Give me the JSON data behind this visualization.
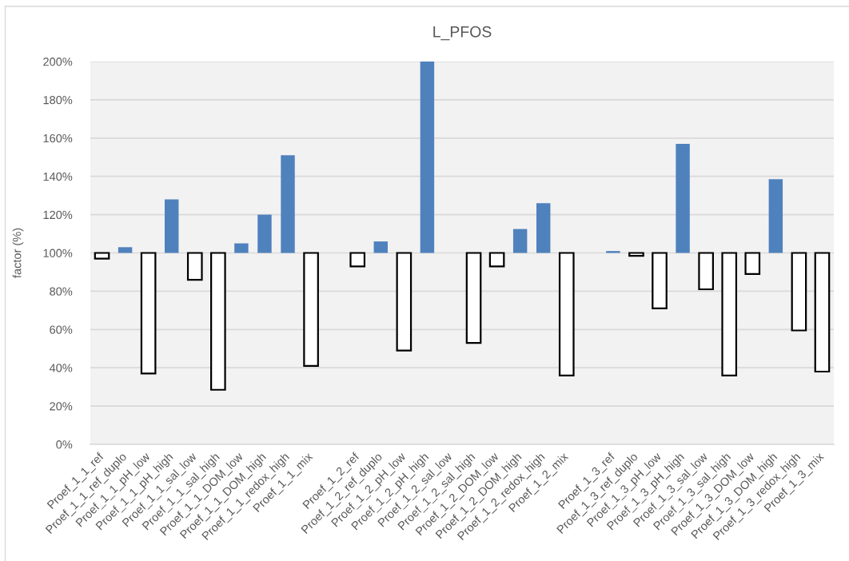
{
  "chart_data": {
    "type": "bar",
    "title": "L_PFOS",
    "ylabel": "factor (%)",
    "categories": [
      "Proef_1_1_ref",
      "Proef_1_1_ref_duplo",
      "Proef_1_1_pH_low",
      "Proef_1_1_pH_high",
      "Proef_1_1_sal_low",
      "Proef_1_1_sal_high",
      "Proef_1_1_DOM_low",
      "Proef_1_1_DOM_high",
      "Proef_1_1_redox_high",
      "Proef_1_1_mix",
      null,
      "Proef_1_2_ref",
      "Proef_1_2_ref_duplo",
      "Proef_1_2_pH_low",
      "Proef_1_2_pH_high",
      "Proef_1_2_sal_low",
      "Proef_1_2_sal_high",
      "Proef_1_2_DOM_low",
      "Proef_1_2_DOM_high",
      "Proef_1_2_redox_high",
      "Proef_1_2_mix",
      null,
      "Proef_1_3_ref",
      "Proef_1_3_ref_duplo",
      "Proef_1_3_pH_low",
      "Proef_1_3_pH_high",
      "Proef_1_3_sal_low",
      "Proef_1_3_sal_high",
      "Proef_1_3_DOM_low",
      "Proef_1_3_DOM_high",
      "Proef_1_3_redox_high",
      "Proef_1_3_mix"
    ],
    "base": [
      100,
      100,
      100,
      100,
      100,
      100,
      100,
      100,
      100,
      100,
      null,
      100,
      100,
      100,
      100,
      null,
      100,
      100,
      100,
      100,
      100,
      null,
      100,
      100,
      100,
      100,
      100,
      100,
      100,
      100,
      100,
      100
    ],
    "values": [
      -3,
      3,
      -63,
      28,
      -14,
      -71.5,
      5,
      20,
      51,
      -59,
      null,
      -7,
      6,
      -51,
      100,
      null,
      -47,
      -7,
      12.5,
      26,
      -64,
      null,
      1,
      -1.5,
      -29,
      57,
      -19,
      -64,
      -11,
      38.5,
      -40.5,
      -62
    ],
    "colors": [
      "#ffffff",
      "#4f81bd",
      "#ffffff",
      "#4f81bd",
      "#ffffff",
      "#ffffff",
      "#4f81bd",
      "#4f81bd",
      "#4f81bd",
      "#ffffff",
      null,
      "#ffffff",
      "#4f81bd",
      "#ffffff",
      "#4f81bd",
      null,
      "#ffffff",
      "#ffffff",
      "#4f81bd",
      "#4f81bd",
      "#ffffff",
      null,
      "#4f81bd",
      "#ffffff",
      "#ffffff",
      "#4f81bd",
      "#ffffff",
      "#ffffff",
      "#ffffff",
      "#4f81bd",
      "#ffffff",
      "#ffffff"
    ],
    "ylim": [
      0,
      200
    ],
    "yticks": [
      {
        "value": 0,
        "label": "0%"
      },
      {
        "value": 20,
        "label": "20%"
      },
      {
        "value": 40,
        "label": "40%"
      },
      {
        "value": 60,
        "label": "60%"
      },
      {
        "value": 80,
        "label": "80%"
      },
      {
        "value": 100,
        "label": "100%"
      },
      {
        "value": 120,
        "label": "120%"
      },
      {
        "value": 140,
        "label": "140%"
      },
      {
        "value": 160,
        "label": "160%"
      },
      {
        "value": 180,
        "label": "180%"
      },
      {
        "value": 200,
        "label": "200%"
      }
    ],
    "grid": "y",
    "legend": false
  }
}
